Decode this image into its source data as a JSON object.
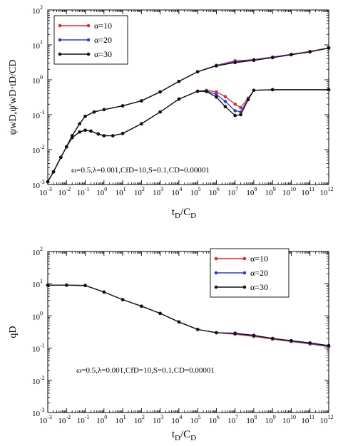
{
  "chart_data": [
    {
      "type": "line",
      "xscale": "log",
      "yscale": "log",
      "xlim": [
        0.001,
        1000000000000.0
      ],
      "ylim": [
        0.001,
        100
      ],
      "x_ticks": [
        {
          "base": "10",
          "exp": "-3"
        },
        {
          "base": "10",
          "exp": "-2"
        },
        {
          "base": "10",
          "exp": "-1"
        },
        {
          "base": "10",
          "exp": "0"
        },
        {
          "base": "10",
          "exp": "1"
        },
        {
          "base": "10",
          "exp": "2"
        },
        {
          "base": "10",
          "exp": "3"
        },
        {
          "base": "10",
          "exp": "4"
        },
        {
          "base": "10",
          "exp": "5"
        },
        {
          "base": "10",
          "exp": "6"
        },
        {
          "base": "10",
          "exp": "7"
        },
        {
          "base": "10",
          "exp": "8"
        },
        {
          "base": "10",
          "exp": "9"
        },
        {
          "base": "10",
          "exp": "10"
        },
        {
          "base": "10",
          "exp": "11"
        },
        {
          "base": "10",
          "exp": "12"
        }
      ],
      "y_ticks": [
        {
          "base": "10",
          "exp": "-3"
        },
        {
          "base": "10",
          "exp": "-2"
        },
        {
          "base": "10",
          "exp": "-1"
        },
        {
          "base": "10",
          "exp": "0"
        },
        {
          "base": "10",
          "exp": "1"
        },
        {
          "base": "10",
          "exp": "2"
        }
      ],
      "xlabel": {
        "main": "t",
        "sub": "D",
        "mid": "/C",
        "sub2": "D"
      },
      "ylabel": "ψwD,ψ'wD·tD/CD",
      "annotation": "ω=0.5,λ=0.001,CfD=10,S=0.1,CD=0.00001",
      "legend": {
        "placement": "top-left"
      },
      "series": [
        {
          "name": "α=10",
          "color": "#e8262b",
          "pressure": {
            "x": [
              0.001,
              0.002,
              0.005,
              0.01,
              0.02,
              0.05,
              0.1,
              0.3,
              1,
              10,
              100,
              1000,
              10000,
              100000,
              1000000,
              10000000,
              100000000,
              1000000000,
              10000000000,
              100000000000,
              1000000000000
            ],
            "y": [
              0.0012,
              0.0023,
              0.006,
              0.012,
              0.025,
              0.055,
              0.09,
              0.12,
              0.14,
              0.18,
              0.25,
              0.45,
              0.9,
              1.7,
              2.6,
              3.5,
              3.8,
              4.5,
              5.4,
              6.5,
              8.3
            ]
          },
          "derivative": {
            "x": [
              0.001,
              0.002,
              0.005,
              0.01,
              0.02,
              0.05,
              0.1,
              0.2,
              0.5,
              1,
              3,
              10,
              100,
              1000,
              10000,
              100000,
              300000,
              1000000,
              3000000,
              10000000,
              20000000,
              50000000,
              100000000,
              1000000000,
              1000000000000
            ],
            "y": [
              0.0012,
              0.0023,
              0.006,
              0.012,
              0.022,
              0.032,
              0.036,
              0.034,
              0.028,
              0.025,
              0.025,
              0.029,
              0.055,
              0.12,
              0.28,
              0.47,
              0.5,
              0.45,
              0.33,
              0.2,
              0.16,
              0.3,
              0.5,
              0.52,
              0.52
            ]
          }
        },
        {
          "name": "α=20",
          "color": "#2a3fd9",
          "pressure": {
            "x": [
              0.001,
              0.002,
              0.005,
              0.01,
              0.02,
              0.05,
              0.1,
              0.3,
              1,
              10,
              100,
              1000,
              10000,
              100000,
              1000000,
              10000000,
              100000000,
              1000000000,
              10000000000,
              100000000000,
              1000000000000
            ],
            "y": [
              0.0012,
              0.0023,
              0.006,
              0.012,
              0.025,
              0.055,
              0.09,
              0.12,
              0.14,
              0.18,
              0.25,
              0.45,
              0.9,
              1.7,
              2.55,
              3.3,
              3.7,
              4.4,
              5.3,
              6.4,
              8.2
            ]
          },
          "derivative": {
            "x": [
              0.001,
              0.002,
              0.005,
              0.01,
              0.02,
              0.05,
              0.1,
              0.2,
              0.5,
              1,
              3,
              10,
              100,
              1000,
              10000,
              100000,
              300000,
              1000000,
              3000000,
              10000000,
              20000000,
              50000000,
              100000000,
              1000000000,
              1000000000000
            ],
            "y": [
              0.0012,
              0.0023,
              0.006,
              0.012,
              0.022,
              0.032,
              0.036,
              0.034,
              0.028,
              0.025,
              0.025,
              0.029,
              0.055,
              0.12,
              0.28,
              0.47,
              0.48,
              0.38,
              0.24,
              0.13,
              0.12,
              0.28,
              0.5,
              0.52,
              0.52
            ]
          }
        },
        {
          "name": "α=30",
          "color": "#111111",
          "pressure": {
            "x": [
              0.001,
              0.002,
              0.005,
              0.01,
              0.02,
              0.05,
              0.1,
              0.3,
              1,
              10,
              100,
              1000,
              10000,
              100000,
              1000000,
              10000000,
              100000000,
              1000000000,
              10000000000,
              100000000000,
              1000000000000
            ],
            "y": [
              0.0012,
              0.0023,
              0.006,
              0.012,
              0.025,
              0.055,
              0.09,
              0.12,
              0.14,
              0.18,
              0.25,
              0.45,
              0.9,
              1.7,
              2.5,
              3.1,
              3.6,
              4.3,
              5.2,
              6.3,
              8.1
            ]
          },
          "derivative": {
            "x": [
              0.001,
              0.002,
              0.005,
              0.01,
              0.02,
              0.05,
              0.1,
              0.2,
              0.5,
              1,
              3,
              10,
              100,
              1000,
              10000,
              100000,
              300000,
              1000000,
              3000000,
              10000000,
              20000000,
              50000000,
              100000000,
              1000000000,
              1000000000000
            ],
            "y": [
              0.0012,
              0.0023,
              0.006,
              0.012,
              0.022,
              0.032,
              0.036,
              0.034,
              0.028,
              0.025,
              0.025,
              0.029,
              0.055,
              0.12,
              0.28,
              0.47,
              0.46,
              0.32,
              0.17,
              0.095,
              0.1,
              0.27,
              0.5,
              0.52,
              0.52
            ]
          }
        }
      ]
    },
    {
      "type": "line",
      "xscale": "log",
      "yscale": "log",
      "xlim": [
        0.001,
        1000000000000.0
      ],
      "ylim": [
        0.001,
        100
      ],
      "x_ticks": [
        {
          "base": "10",
          "exp": "-3"
        },
        {
          "base": "10",
          "exp": "-2"
        },
        {
          "base": "10",
          "exp": "-1"
        },
        {
          "base": "10",
          "exp": "0"
        },
        {
          "base": "10",
          "exp": "1"
        },
        {
          "base": "10",
          "exp": "2"
        },
        {
          "base": "10",
          "exp": "3"
        },
        {
          "base": "10",
          "exp": "4"
        },
        {
          "base": "10",
          "exp": "5"
        },
        {
          "base": "10",
          "exp": "6"
        },
        {
          "base": "10",
          "exp": "7"
        },
        {
          "base": "10",
          "exp": "8"
        },
        {
          "base": "10",
          "exp": "9"
        },
        {
          "base": "10",
          "exp": "10"
        },
        {
          "base": "10",
          "exp": "11"
        },
        {
          "base": "10",
          "exp": "12"
        }
      ],
      "y_ticks": [
        {
          "base": "10",
          "exp": "-3"
        },
        {
          "base": "10",
          "exp": "-2"
        },
        {
          "base": "10",
          "exp": "-1"
        },
        {
          "base": "10",
          "exp": "0"
        },
        {
          "base": "10",
          "exp": "1"
        },
        {
          "base": "10",
          "exp": "2"
        }
      ],
      "xlabel": {
        "main": "t",
        "sub": "D",
        "mid": "/C",
        "sub2": "D"
      },
      "ylabel": "qD",
      "annotation": "ω=0.5,λ=0.001,CfD=10,S=0.1,CD=0.00001",
      "legend": {
        "placement": "top-right"
      },
      "series": [
        {
          "name": "α=10",
          "color": "#e8262b",
          "values": {
            "x": [
              0.001,
              0.01,
              0.1,
              1,
              10,
              100,
              1000,
              10000,
              100000,
              1000000,
              10000000,
              100000000,
              1000000000,
              10000000000,
              100000000000,
              1000000000000
            ],
            "y": [
              9.0,
              9.0,
              8.8,
              5.5,
              3.2,
              2.0,
              1.2,
              0.65,
              0.38,
              0.3,
              0.27,
              0.23,
              0.19,
              0.16,
              0.135,
              0.11
            ]
          }
        },
        {
          "name": "α=20",
          "color": "#2a3fd9",
          "values": {
            "x": [
              0.001,
              0.01,
              0.1,
              1,
              10,
              100,
              1000,
              10000,
              100000,
              1000000,
              10000000,
              100000000,
              1000000000,
              10000000000,
              100000000000,
              1000000000000
            ],
            "y": [
              9.0,
              9.0,
              8.8,
              5.5,
              3.2,
              2.0,
              1.2,
              0.65,
              0.38,
              0.3,
              0.28,
              0.24,
              0.2,
              0.165,
              0.14,
              0.115
            ]
          }
        },
        {
          "name": "α=30",
          "color": "#111111",
          "values": {
            "x": [
              0.001,
              0.01,
              0.1,
              1,
              10,
              100,
              1000,
              10000,
              100000,
              1000000,
              10000000,
              100000000,
              1000000000,
              10000000000,
              100000000000,
              1000000000000
            ],
            "y": [
              9.0,
              9.0,
              8.8,
              5.5,
              3.2,
              2.0,
              1.2,
              0.65,
              0.38,
              0.3,
              0.29,
              0.25,
              0.2,
              0.17,
              0.145,
              0.12
            ]
          }
        }
      ]
    }
  ]
}
